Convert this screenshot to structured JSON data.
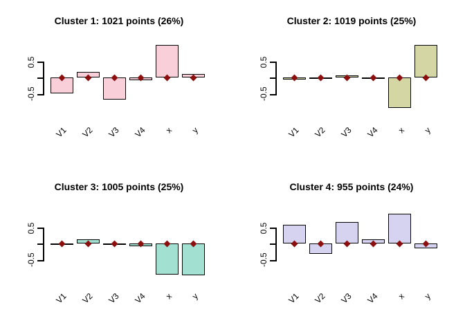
{
  "figure": {
    "background": "#ffffff",
    "axis_color": "#000000",
    "bar_border_color": "#000000",
    "marker": {
      "shape": "diamond",
      "color": "#8B0F0F",
      "value": 0
    }
  },
  "chart_data": [
    {
      "type": "bar",
      "title": "Cluster 1: 1021 points (26%)",
      "n_points": 1021,
      "percent": "26%",
      "categories": [
        "V1",
        "V2",
        "V3",
        "V4",
        "x",
        "y"
      ],
      "values": [
        -0.48,
        0.18,
        -0.68,
        -0.08,
        1.0,
        0.1
      ],
      "markers": [
        0,
        0,
        0,
        0,
        0,
        0
      ],
      "bar_color": "#F9CFDA",
      "yticks": [
        0.5,
        0,
        -0.5
      ],
      "ytick_labels": [
        "0.5",
        "-0.5"
      ],
      "ylim": [
        -1.05,
        1.1
      ],
      "grid": false,
      "legend": null
    },
    {
      "type": "bar",
      "title": "Cluster 2: 1019 points (25%)",
      "n_points": 1019,
      "percent": "25%",
      "categories": [
        "V1",
        "V2",
        "V3",
        "V4",
        "x",
        "y"
      ],
      "values": [
        -0.06,
        -0.01,
        0.07,
        -0.02,
        -0.94,
        1.0
      ],
      "markers": [
        0,
        0,
        0,
        0,
        0,
        0
      ],
      "bar_color": "#D4D6A4",
      "yticks": [
        0.5,
        0,
        -0.5
      ],
      "ytick_labels": [
        "0.5",
        "-0.5"
      ],
      "ylim": [
        -1.05,
        1.1
      ],
      "grid": false,
      "legend": null
    },
    {
      "type": "bar",
      "title": "Cluster 3: 1005 points (25%)",
      "n_points": 1005,
      "percent": "25%",
      "categories": [
        "V1",
        "V2",
        "V3",
        "V4",
        "x",
        "y"
      ],
      "values": [
        -0.01,
        0.13,
        -0.01,
        -0.08,
        -0.95,
        -0.98
      ],
      "markers": [
        0,
        0,
        0,
        0,
        0,
        0
      ],
      "bar_color": "#A2E0D2",
      "yticks": [
        0.5,
        0,
        -0.5
      ],
      "ytick_labels": [
        "0.5",
        "-0.5"
      ],
      "ylim": [
        -1.05,
        1.1
      ],
      "grid": false,
      "legend": null
    },
    {
      "type": "bar",
      "title": "Cluster 4: 955 points (24%)",
      "n_points": 955,
      "percent": "24%",
      "categories": [
        "V1",
        "V2",
        "V3",
        "V4",
        "x",
        "y"
      ],
      "values": [
        0.58,
        -0.31,
        0.67,
        0.12,
        0.92,
        -0.14
      ],
      "markers": [
        0,
        0,
        0,
        0,
        0,
        0
      ],
      "bar_color": "#D6D3F0",
      "yticks": [
        0.5,
        0,
        -0.5
      ],
      "ytick_labels": [
        "0.5",
        "-0.5"
      ],
      "ylim": [
        -1.05,
        1.1
      ],
      "grid": false,
      "legend": null
    }
  ]
}
